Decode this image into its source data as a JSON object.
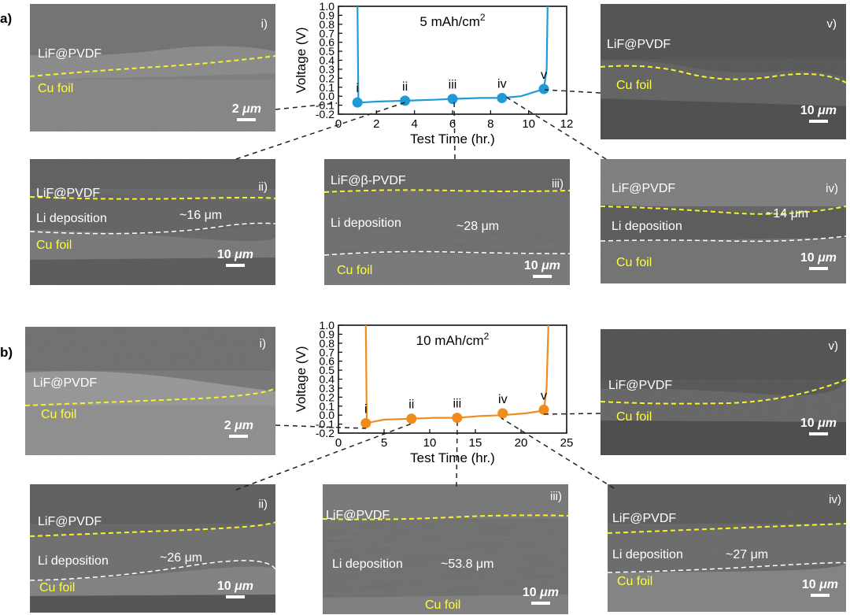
{
  "figure": {
    "label_a": "a)",
    "label_b": "b)",
    "panels_a": [
      {
        "id": "i",
        "roman": "i)",
        "top": "LiF@PVDF",
        "bottom": "Cu foil",
        "mid": "",
        "thickness": "",
        "scale_num": "2 ",
        "scale_unit": "μm"
      },
      {
        "id": "ii",
        "roman": "ii)",
        "top": "LiF@PVDF",
        "mid": "Li deposition",
        "thickness": "~16 μm",
        "bottom": "Cu foil",
        "scale_num": "10 ",
        "scale_unit": "μm"
      },
      {
        "id": "iii",
        "roman": "iii)",
        "top": "LiF@β-PVDF",
        "mid": "Li deposition",
        "thickness": "~28 μm",
        "bottom": "Cu foil",
        "scale_num": "10 ",
        "scale_unit": "μm"
      },
      {
        "id": "iv",
        "roman": "iv)",
        "top": "LiF@PVDF",
        "mid": "Li deposition",
        "thickness": "~14 μm",
        "bottom": "Cu foil",
        "scale_num": "10 ",
        "scale_unit": "μm"
      },
      {
        "id": "v",
        "roman": "v)",
        "top": "LiF@PVDF",
        "bottom": "Cu foil",
        "mid": "",
        "thickness": "",
        "scale_num": "10 ",
        "scale_unit": "μm"
      }
    ],
    "panels_b": [
      {
        "id": "i",
        "roman": "i)",
        "top": "LiF@PVDF",
        "bottom": "Cu foil",
        "mid": "",
        "thickness": "",
        "scale_num": "2 ",
        "scale_unit": "μm"
      },
      {
        "id": "ii",
        "roman": "ii)",
        "top": "LiF@PVDF",
        "mid": "Li deposition",
        "thickness": "~26 μm",
        "bottom": "Cu foil",
        "scale_num": "10 ",
        "scale_unit": "μm"
      },
      {
        "id": "iii",
        "roman": "iii)",
        "top": "LiF@PVDF",
        "mid": "Li deposition",
        "thickness": "~53.8 μm",
        "bottom": "Cu foil",
        "scale_num": "10 ",
        "scale_unit": "μm"
      },
      {
        "id": "iv",
        "roman": "iv)",
        "top": "LiF@PVDF",
        "mid": "Li deposition",
        "thickness": "~27 μm",
        "bottom": "Cu foil",
        "scale_num": "10 ",
        "scale_unit": "μm"
      },
      {
        "id": "v",
        "roman": "v)",
        "top": "LiF@PVDF",
        "bottom": "Cu foil",
        "mid": "",
        "thickness": "",
        "scale_num": "10 ",
        "scale_unit": "μm"
      }
    ]
  },
  "chart_data": [
    {
      "type": "line",
      "title": "5 mAh/cm",
      "title_sup": "2",
      "xlabel": "Test Time (hr.)",
      "ylabel": "Voltage (V)",
      "xlim": [
        0,
        12
      ],
      "ylim": [
        -0.2,
        1.0
      ],
      "xticks": [
        0,
        2,
        4,
        6,
        8,
        10,
        12
      ],
      "yticks": [
        -0.2,
        -0.1,
        0.0,
        0.1,
        0.2,
        0.3,
        0.4,
        0.5,
        0.6,
        0.7,
        0.8,
        0.9,
        1.0
      ],
      "color": "#1e9bd7",
      "series": [
        {
          "x": [
            1.0,
            1.05,
            1.2,
            2.0,
            3.5,
            5.0,
            6.0,
            7.5,
            8.6,
            9.6,
            10.8,
            10.95,
            11.0
          ],
          "y": [
            1.0,
            -0.07,
            -0.07,
            -0.06,
            -0.05,
            -0.04,
            -0.03,
            -0.02,
            -0.02,
            0.0,
            0.08,
            0.3,
            1.0
          ]
        }
      ],
      "points": [
        {
          "x": 1.0,
          "y": -0.07,
          "label": "i"
        },
        {
          "x": 3.5,
          "y": -0.05,
          "label": "ii"
        },
        {
          "x": 6.0,
          "y": -0.03,
          "label": "iii"
        },
        {
          "x": 8.6,
          "y": -0.02,
          "label": "iv"
        },
        {
          "x": 10.8,
          "y": 0.08,
          "label": "v"
        }
      ]
    },
    {
      "type": "line",
      "title": "10 mAh/cm",
      "title_sup": "2",
      "xlabel": "Test Time (hr.)",
      "ylabel": "Voltage (V)",
      "xlim": [
        0,
        25
      ],
      "ylim": [
        -0.2,
        1.0
      ],
      "xticks": [
        0,
        5,
        10,
        15,
        20,
        25
      ],
      "yticks": [
        -0.2,
        -0.1,
        0.0,
        0.1,
        0.2,
        0.3,
        0.4,
        0.5,
        0.6,
        0.7,
        0.8,
        0.9,
        1.0
      ],
      "color": "#f08c1e",
      "series": [
        {
          "x": [
            3.0,
            3.1,
            3.5,
            5.0,
            8.0,
            10.5,
            13.0,
            15.5,
            18.0,
            20.5,
            22.5,
            22.8,
            23.0
          ],
          "y": [
            1.0,
            -0.07,
            -0.08,
            -0.05,
            -0.04,
            -0.03,
            -0.03,
            -0.01,
            0.0,
            0.02,
            0.05,
            0.3,
            1.0
          ]
        }
      ],
      "points": [
        {
          "x": 3.0,
          "y": -0.09,
          "label": "i"
        },
        {
          "x": 8.0,
          "y": -0.04,
          "label": "ii"
        },
        {
          "x": 13.0,
          "y": -0.03,
          "label": "iii"
        },
        {
          "x": 18.0,
          "y": 0.02,
          "label": "iv"
        },
        {
          "x": 22.5,
          "y": 0.06,
          "label": "v"
        }
      ]
    }
  ]
}
